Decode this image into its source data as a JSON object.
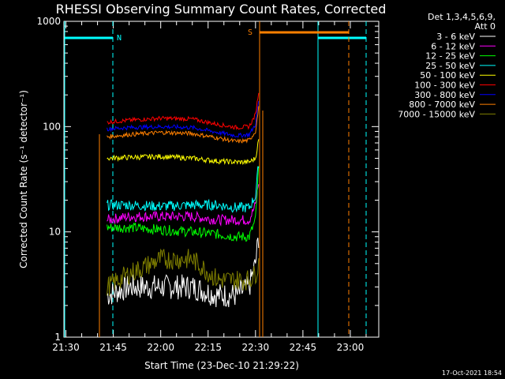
{
  "chart_data": {
    "type": "line",
    "title": "RHESSI Observing Summary Count Rates, Corrected",
    "xlabel": "Start Time (23-Dec-10 21:29:22)",
    "ylabel": "Corrected Count Rate (s⁻¹ detector⁻¹)",
    "yscale": "log",
    "ylim": [
      1,
      1000
    ],
    "xlim": [
      "21:29:22",
      "23:09:00"
    ],
    "x_ticks": [
      "21:30",
      "21:45",
      "22:00",
      "22:15",
      "22:30",
      "22:45",
      "23:00"
    ],
    "y_ticks": [
      "1",
      "10",
      "100",
      "1000"
    ],
    "legend_header": [
      "Det 1,3,4,5,6,9,",
      "Att 0"
    ],
    "legend_position": "right",
    "timestamp": "17-Oct-2021 18:54",
    "series": [
      {
        "name": "3 - 6 keV",
        "color": "#ffffff",
        "x": [
          "21:43",
          "21:50",
          "22:00",
          "22:10",
          "22:18",
          "22:24",
          "22:28",
          "22:30",
          "22:31"
        ],
        "y": [
          2.5,
          3,
          3,
          3,
          2.5,
          2.5,
          3,
          5,
          9
        ]
      },
      {
        "name": "6 - 12 keV",
        "color": "#ff00ff",
        "x": [
          "21:43",
          "21:50",
          "22:00",
          "22:10",
          "22:18",
          "22:24",
          "22:28",
          "22:30",
          "22:31"
        ],
        "y": [
          13,
          14,
          14,
          14,
          13,
          13,
          13,
          18,
          30
        ]
      },
      {
        "name": "12 - 25 keV",
        "color": "#00ff00",
        "x": [
          "21:43",
          "21:50",
          "22:00",
          "22:10",
          "22:18",
          "22:24",
          "22:28",
          "22:30",
          "22:31"
        ],
        "y": [
          11,
          11,
          10.5,
          10,
          9.5,
          9,
          9,
          13,
          40
        ]
      },
      {
        "name": "25 - 50 keV",
        "color": "#00ffff",
        "x": [
          "21:43",
          "21:50",
          "22:00",
          "22:10",
          "22:18",
          "22:24",
          "22:28",
          "22:30",
          "22:31"
        ],
        "y": [
          18,
          18,
          17.5,
          18,
          18,
          17,
          17,
          22,
          45
        ]
      },
      {
        "name": "50 - 100 keV",
        "color": "#ffff00",
        "x": [
          "21:43",
          "21:50",
          "22:00",
          "22:10",
          "22:18",
          "22:24",
          "22:28",
          "22:30",
          "22:31"
        ],
        "y": [
          50,
          51,
          52,
          50,
          47,
          46,
          46,
          50,
          75
        ]
      },
      {
        "name": "100 - 300 keV",
        "color": "#ff0000",
        "x": [
          "21:43",
          "21:50",
          "22:00",
          "22:10",
          "22:18",
          "22:24",
          "22:28",
          "22:30",
          "22:31"
        ],
        "y": [
          110,
          115,
          120,
          118,
          105,
          98,
          100,
          130,
          215
        ]
      },
      {
        "name": "300 - 800 keV",
        "color": "#0000ff",
        "x": [
          "21:43",
          "21:50",
          "22:00",
          "22:10",
          "22:18",
          "22:24",
          "22:28",
          "22:30",
          "22:31"
        ],
        "y": [
          95,
          98,
          100,
          98,
          88,
          82,
          84,
          105,
          175
        ]
      },
      {
        "name": "800 - 7000 keV",
        "color": "#ff8000",
        "x": [
          "21:43",
          "21:50",
          "22:00",
          "22:10",
          "22:18",
          "22:24",
          "22:28",
          "22:30",
          "22:31"
        ],
        "y": [
          80,
          84,
          88,
          86,
          78,
          72,
          74,
          90,
          150
        ]
      },
      {
        "name": "7000 - 15000 keV",
        "color": "#808000",
        "x": [
          "21:43",
          "21:50",
          "22:00",
          "22:10",
          "22:18",
          "22:24",
          "22:28",
          "22:30",
          "22:31"
        ],
        "y": [
          3,
          4,
          5.5,
          5.5,
          3.5,
          3.5,
          3.5,
          4,
          5
        ]
      }
    ],
    "annotations": [
      {
        "label": "N",
        "color": "#00ffff",
        "time": "21:44"
      },
      {
        "label": "S",
        "color": "#ff8000",
        "time": "22:29"
      }
    ]
  }
}
